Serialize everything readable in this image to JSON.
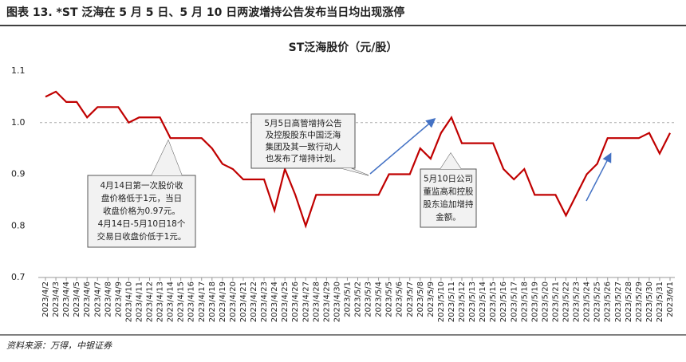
{
  "header": {
    "title": "图表 13. *ST 泛海在 5 月 5 日、5 月 10 日两波增持公告发布当日均出现涨停"
  },
  "chart_data": {
    "type": "line",
    "title": "ST泛海股价（元/股）",
    "categories": [
      "2023/4/2",
      "2023/4/3",
      "2023/4/4",
      "2023/4/5",
      "2023/4/6",
      "2023/4/7",
      "2023/4/8",
      "2023/4/9",
      "2023/4/10",
      "2023/4/11",
      "2023/4/12",
      "2023/4/13",
      "2023/4/14",
      "2023/4/15",
      "2023/4/16",
      "2023/4/17",
      "2023/4/18",
      "2023/4/19",
      "2023/4/20",
      "2023/4/21",
      "2023/4/22",
      "2023/4/23",
      "2023/4/24",
      "2023/4/25",
      "2023/4/26",
      "2023/4/27",
      "2023/4/28",
      "2023/4/29",
      "2023/4/30",
      "2023/5/1",
      "2023/5/2",
      "2023/5/3",
      "2023/5/4",
      "2023/5/5",
      "2023/5/6",
      "2023/5/7",
      "2023/5/8",
      "2023/5/9",
      "2023/5/10",
      "2023/5/11",
      "2023/5/12",
      "2023/5/13",
      "2023/5/14",
      "2023/5/15",
      "2023/5/16",
      "2023/5/17",
      "2023/5/18",
      "2023/5/19",
      "2023/5/20",
      "2023/5/21",
      "2023/5/22",
      "2023/5/23",
      "2023/5/24",
      "2023/5/25",
      "2023/5/26",
      "2023/5/27",
      "2023/5/28",
      "2023/5/29",
      "2023/5/30",
      "2023/5/31",
      "2023/6/1"
    ],
    "series": [
      {
        "name": "ST泛海",
        "color": "#c00000",
        "values": [
          1.05,
          1.06,
          1.04,
          1.04,
          1.01,
          1.03,
          1.03,
          1.03,
          1.0,
          1.01,
          1.01,
          1.01,
          0.97,
          0.97,
          0.97,
          0.97,
          0.95,
          0.92,
          0.91,
          0.89,
          0.89,
          0.89,
          0.83,
          0.91,
          0.86,
          0.8,
          0.86,
          0.86,
          0.86,
          0.86,
          0.86,
          0.86,
          0.86,
          0.9,
          0.9,
          0.9,
          0.95,
          0.93,
          0.98,
          1.01,
          0.96,
          0.96,
          0.96,
          0.96,
          0.91,
          0.89,
          0.91,
          0.86,
          0.86,
          0.86,
          0.82,
          0.86,
          0.9,
          0.92,
          0.97,
          0.97,
          0.97,
          0.97,
          0.98,
          0.94,
          0.98
        ]
      }
    ],
    "ylim": [
      0.7,
      1.1
    ],
    "yticks": [
      0.7,
      0.8,
      0.9,
      {
        "value": 1,
        "label": "1.0"
      },
      1.1
    ],
    "annotations": [
      {
        "lines": [
          "4月14日第一次股价收",
          "盘价格低于1元，当日",
          "收盘价格为0.97元。",
          "4月14日-5月10日18个",
          "交易日收盘价低于1元。"
        ]
      },
      {
        "lines": [
          "5月5日高管增持公告",
          "及控股股东中国泛海",
          "集团及其一致行动人",
          "也发布了增持计划。"
        ]
      },
      {
        "lines": [
          "5月10日公司",
          "董监高和控股",
          "股东追加增持",
          "金额。"
        ]
      }
    ]
  },
  "source": "资料来源：万得，中银证券"
}
